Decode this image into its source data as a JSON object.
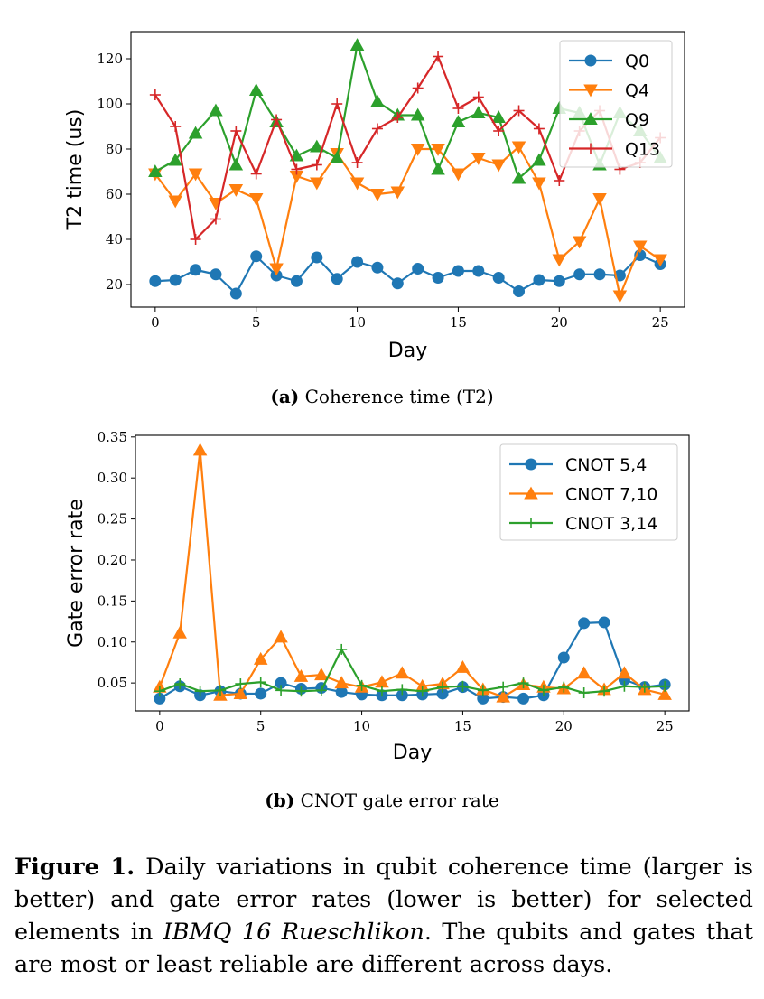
{
  "chart_data": [
    {
      "type": "line",
      "xlabel": "Day",
      "ylabel": "T2 time (us)",
      "xlim": [
        -1.2,
        26.2
      ],
      "ylim": [
        10,
        132
      ],
      "xticks": [
        0,
        5,
        10,
        15,
        20,
        25
      ],
      "yticks": [
        20,
        40,
        60,
        80,
        100,
        120
      ],
      "legend_position": "upper-right",
      "x": [
        0,
        1,
        2,
        3,
        4,
        5,
        6,
        7,
        8,
        9,
        10,
        11,
        12,
        13,
        14,
        15,
        16,
        17,
        18,
        19,
        20,
        21,
        22,
        23,
        24,
        25
      ],
      "series": [
        {
          "name": "Q0",
          "color": "#1f77b4",
          "marker": "circle",
          "values": [
            21.5,
            22,
            26.5,
            24.5,
            16,
            32.5,
            24,
            21.5,
            32,
            22.5,
            30,
            27.5,
            20.5,
            27,
            23,
            26,
            26,
            23,
            17,
            22,
            21.5,
            24.5,
            24.5,
            24,
            33,
            29
          ]
        },
        {
          "name": "Q4",
          "color": "#ff7f0e",
          "marker": "triangle-down",
          "values": [
            69,
            57,
            69,
            56,
            62,
            58,
            27,
            68,
            65,
            78,
            65,
            60,
            61,
            80,
            80,
            69,
            76,
            73,
            81,
            65,
            31,
            39,
            58,
            15,
            37,
            31
          ]
        },
        {
          "name": "Q9",
          "color": "#2ca02c",
          "marker": "triangle-up",
          "values": [
            70,
            75,
            87,
            97,
            73,
            106,
            92,
            77,
            81,
            76,
            126,
            101,
            95,
            95,
            71,
            92,
            96,
            94,
            67,
            75,
            98,
            96,
            73,
            96,
            88,
            76
          ]
        },
        {
          "name": "Q13",
          "color": "#d62728",
          "marker": "plus",
          "values": [
            104,
            90,
            40,
            49,
            88,
            69,
            93,
            71,
            73,
            100,
            74,
            89,
            94,
            107,
            121,
            98,
            103,
            88,
            97,
            89,
            66,
            88,
            97,
            71,
            74,
            85
          ]
        }
      ],
      "caption_label": "(a)",
      "caption_text": " Coherence time (T2)"
    },
    {
      "type": "line",
      "xlabel": "Day",
      "ylabel": "Gate error rate",
      "xlim": [
        -1.2,
        26.2
      ],
      "ylim": [
        0.016,
        0.352
      ],
      "xticks": [
        0,
        5,
        10,
        15,
        20,
        25
      ],
      "yticks": [
        0.05,
        0.1,
        0.15,
        0.2,
        0.25,
        0.3,
        0.35
      ],
      "ytick_labels": [
        "0.05",
        "0.10",
        "0.15",
        "0.20",
        "0.25",
        "0.30",
        "0.35"
      ],
      "legend_position": "upper-right",
      "x": [
        0,
        1,
        2,
        3,
        4,
        5,
        6,
        7,
        8,
        9,
        10,
        11,
        12,
        13,
        14,
        15,
        16,
        17,
        18,
        19,
        20,
        21,
        22,
        23,
        24,
        25
      ],
      "series": [
        {
          "name": "CNOT 5,4",
          "color": "#1f77b4",
          "marker": "circle",
          "values": [
            0.031,
            0.046,
            0.035,
            0.04,
            0.037,
            0.037,
            0.05,
            0.043,
            0.044,
            0.039,
            0.036,
            0.035,
            0.035,
            0.036,
            0.037,
            0.045,
            0.031,
            0.033,
            0.031,
            0.035,
            0.081,
            0.123,
            0.124,
            0.054,
            0.045,
            0.048
          ]
        },
        {
          "name": "CNOT 7,10",
          "color": "#ff7f0e",
          "marker": "triangle-up",
          "values": [
            0.045,
            0.111,
            0.334,
            0.035,
            0.037,
            0.079,
            0.106,
            0.058,
            0.06,
            0.05,
            0.045,
            0.051,
            0.062,
            0.046,
            0.049,
            0.069,
            0.042,
            0.033,
            0.048,
            0.045,
            0.043,
            0.062,
            0.042,
            0.062,
            0.042,
            0.036
          ]
        },
        {
          "name": "CNOT 3,14",
          "color": "#2ca02c",
          "marker": "plus",
          "values": [
            0.04,
            0.049,
            0.04,
            0.041,
            0.049,
            0.051,
            0.041,
            0.04,
            0.041,
            0.091,
            0.047,
            0.04,
            0.042,
            0.04,
            0.045,
            0.046,
            0.041,
            0.045,
            0.05,
            0.041,
            0.045,
            0.038,
            0.04,
            0.046,
            0.045,
            0.046
          ]
        }
      ],
      "caption_label": "(b)",
      "caption_text": " CNOT gate error rate"
    }
  ],
  "figure_caption": {
    "label": "Figure 1.",
    "text1": " Daily variations in qubit coherence time (larger is better) and gate error rates (lower is better) for selected elements in ",
    "italic": "IBMQ 16 Rueschlikon",
    "text2": ". The qubits and gates that are most or least reliable are different across days."
  }
}
